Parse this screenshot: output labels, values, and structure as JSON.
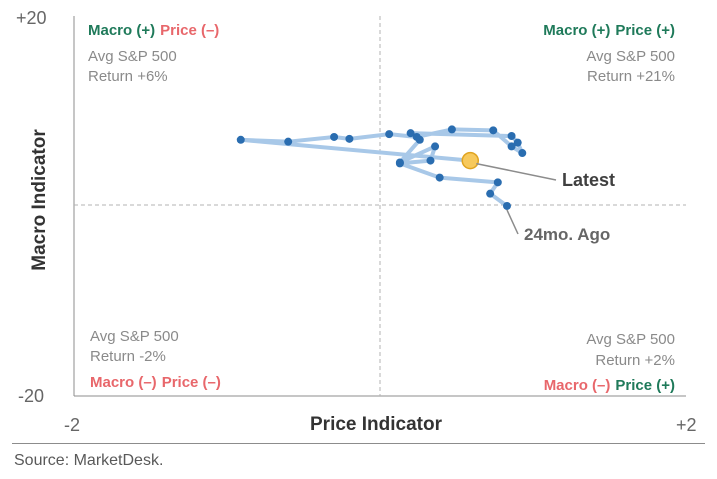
{
  "colors": {
    "green": "#1f7a5a",
    "red": "#e8676b",
    "line": "#a8c8e8",
    "point": "#2a6db0",
    "latest_fill": "#f7c95c",
    "latest_stroke": "#e0a420",
    "grid": "#b3b3b3",
    "text": "#666666",
    "axis_label": "#333333"
  },
  "quadrants": {
    "top_left": {
      "macro": "Macro (+)",
      "price": "Price (–)",
      "line1": "Avg S&P 500",
      "line2": "Return +6%"
    },
    "top_right": {
      "macro": "Macro (+)",
      "price": "Price (+)",
      "line1": "Avg S&P 500",
      "line2": "Return +21%"
    },
    "bottom_left": {
      "macro": "Macro (–)",
      "price": "Price (–)",
      "line1": "Avg S&P 500",
      "line2": "Return -2%"
    },
    "bottom_right": {
      "macro": "Macro (–)",
      "price": "Price (+)",
      "line1": "Avg S&P 500",
      "line2": "Return +2%"
    }
  },
  "annotations": {
    "latest": "Latest",
    "ago": "24mo. Ago"
  },
  "source": "Source: MarketDesk.",
  "chart_data": {
    "type": "scatter",
    "xlabel": "Price Indicator",
    "ylabel": "Macro Indicator",
    "xlim": [
      -2,
      2
    ],
    "ylim": [
      -20,
      20
    ],
    "x_tick_labels": [
      "-2",
      "+2"
    ],
    "y_tick_labels": [
      "-20",
      "+20"
    ],
    "reference_lines": {
      "x": 0,
      "y": 0
    },
    "grid": false,
    "series": [
      {
        "connected": true,
        "points": [
          {
            "x": 0.83,
            "y": -0.1
          },
          {
            "x": 0.72,
            "y": 1.2
          },
          {
            "x": 0.77,
            "y": 2.4
          },
          {
            "x": 0.39,
            "y": 2.9
          },
          {
            "x": 0.13,
            "y": 4.4
          },
          {
            "x": 0.33,
            "y": 4.7
          },
          {
            "x": 0.36,
            "y": 6.2
          },
          {
            "x": 0.13,
            "y": 4.5
          },
          {
            "x": 0.26,
            "y": 6.9
          },
          {
            "x": 0.2,
            "y": 7.6
          },
          {
            "x": 0.86,
            "y": 7.3
          },
          {
            "x": 0.9,
            "y": 6.6
          },
          {
            "x": 0.93,
            "y": 5.5
          },
          {
            "x": 0.86,
            "y": 6.2
          },
          {
            "x": 0.74,
            "y": 7.9
          },
          {
            "x": 0.47,
            "y": 8.0
          },
          {
            "x": 0.24,
            "y": 7.2
          },
          {
            "x": 0.06,
            "y": 7.5
          },
          {
            "x": -0.2,
            "y": 7.0
          },
          {
            "x": -0.3,
            "y": 7.2
          },
          {
            "x": -0.6,
            "y": 6.7
          },
          {
            "x": -0.91,
            "y": 6.9
          },
          {
            "x": 0.59,
            "y": 4.7
          }
        ],
        "latest_index": 22,
        "start_index": 0
      }
    ]
  }
}
